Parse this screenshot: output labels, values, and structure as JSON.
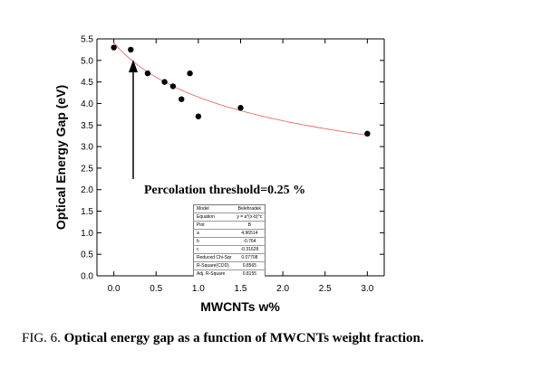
{
  "chart_data": {
    "type": "scatter",
    "xlabel": "MWCNTs w%",
    "ylabel": "Optical Energy Gap (eV)",
    "xlim": [
      -0.2,
      3.2
    ],
    "ylim": [
      0.0,
      5.5
    ],
    "xticks": [
      "0.0",
      "0.5",
      "1.0",
      "1.5",
      "2.0",
      "2.5",
      "3.0"
    ],
    "yticks": [
      "0.0",
      "0.5",
      "1.0",
      "1.5",
      "2.0",
      "2.5",
      "3.0",
      "3.5",
      "4.0",
      "4.5",
      "5.0",
      "5.5"
    ],
    "points": [
      {
        "x": 0.0,
        "y": 5.3
      },
      {
        "x": 0.2,
        "y": 5.25
      },
      {
        "x": 0.4,
        "y": 4.7
      },
      {
        "x": 0.6,
        "y": 4.5
      },
      {
        "x": 0.7,
        "y": 4.4
      },
      {
        "x": 0.8,
        "y": 4.1
      },
      {
        "x": 0.9,
        "y": 4.7
      },
      {
        "x": 1.0,
        "y": 3.7
      },
      {
        "x": 1.5,
        "y": 3.9
      },
      {
        "x": 3.0,
        "y": 3.3
      }
    ],
    "fit": {
      "a": 4.96514,
      "b": -0.764,
      "c": -0.31628,
      "range": [
        0.0,
        3.0
      ]
    },
    "annotation": "Percolation threshold=0.25 %",
    "colors": {
      "points": "#000000",
      "fit": "#e05a5a",
      "axes": "#000000"
    }
  },
  "fit_table": [
    [
      "Model",
      "Belehradek"
    ],
    [
      "Equation",
      "y = a*(x-b)^c"
    ],
    [
      "Plot",
      "B"
    ],
    [
      "a",
      "4.96514"
    ],
    [
      "b",
      "-0.764"
    ],
    [
      "c",
      "-0.31628"
    ],
    [
      "Reduced Chi-Sqr",
      "0.07708"
    ],
    [
      "R-Square(COD)",
      "0.8565"
    ],
    [
      "Adj. R-Square",
      "0.8155"
    ]
  ],
  "caption": {
    "prefix": "FIG. 6.",
    "title": "Optical energy gap as a function of MWCNTs weight fraction."
  }
}
